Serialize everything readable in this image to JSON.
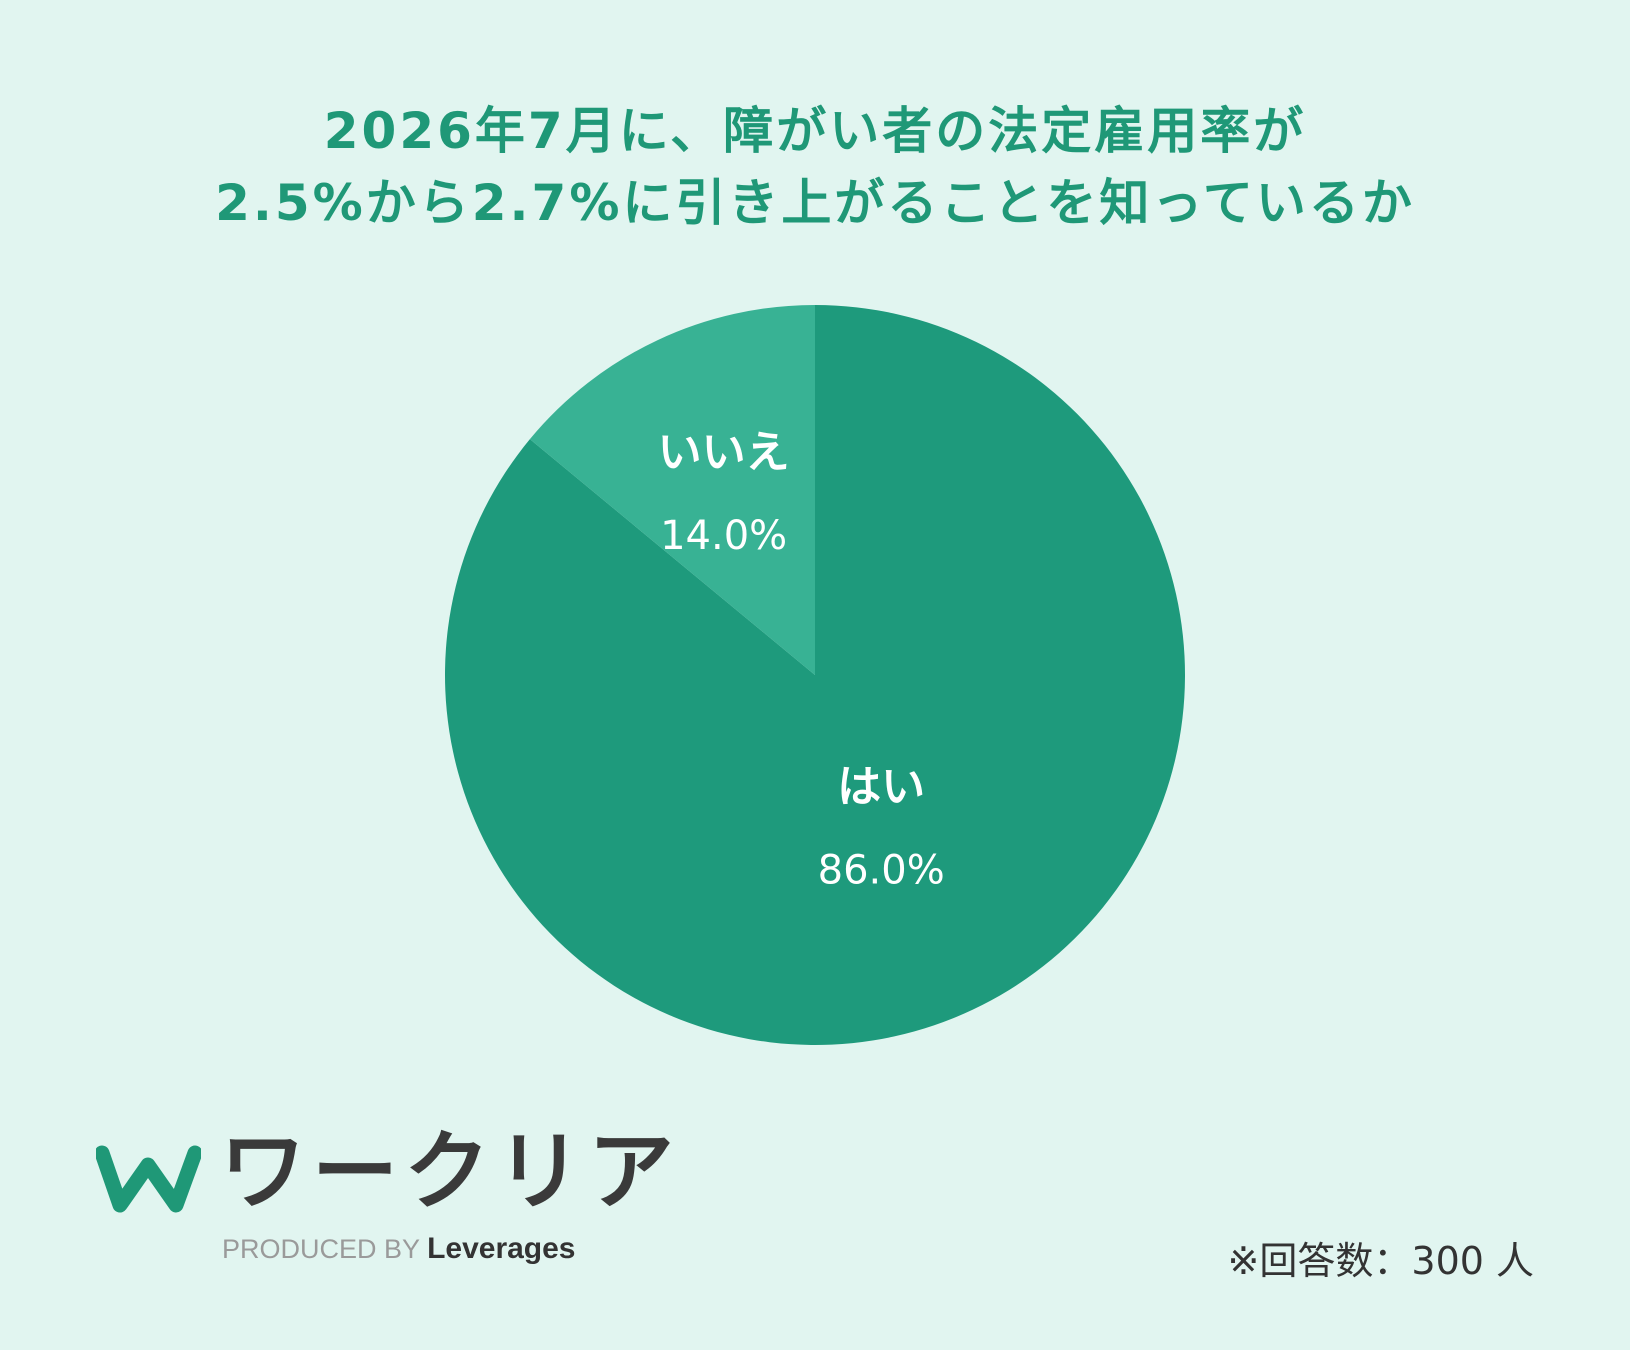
{
  "title": {
    "line1": "2026年7月に、障がい者の法定雇用率が",
    "line2": "2.5%から2.7%に引き上がることを知っているか"
  },
  "chart_data": {
    "type": "pie",
    "title": "2026年7月に、障がい者の法定雇用率が2.5%から2.7%に引き上がることを知っているか",
    "slices": [
      {
        "label": "はい",
        "value": 86.0,
        "display": "86.0%",
        "color": "#1e9a7c"
      },
      {
        "label": "いいえ",
        "value": 14.0,
        "display": "14.0%",
        "color": "#38b294"
      }
    ]
  },
  "logo": {
    "name": "ワークリア",
    "produced_by": "PRODUCED BY",
    "brand": "Leverages",
    "mark_color": "#1f9877"
  },
  "note": "※回答数：300 人"
}
